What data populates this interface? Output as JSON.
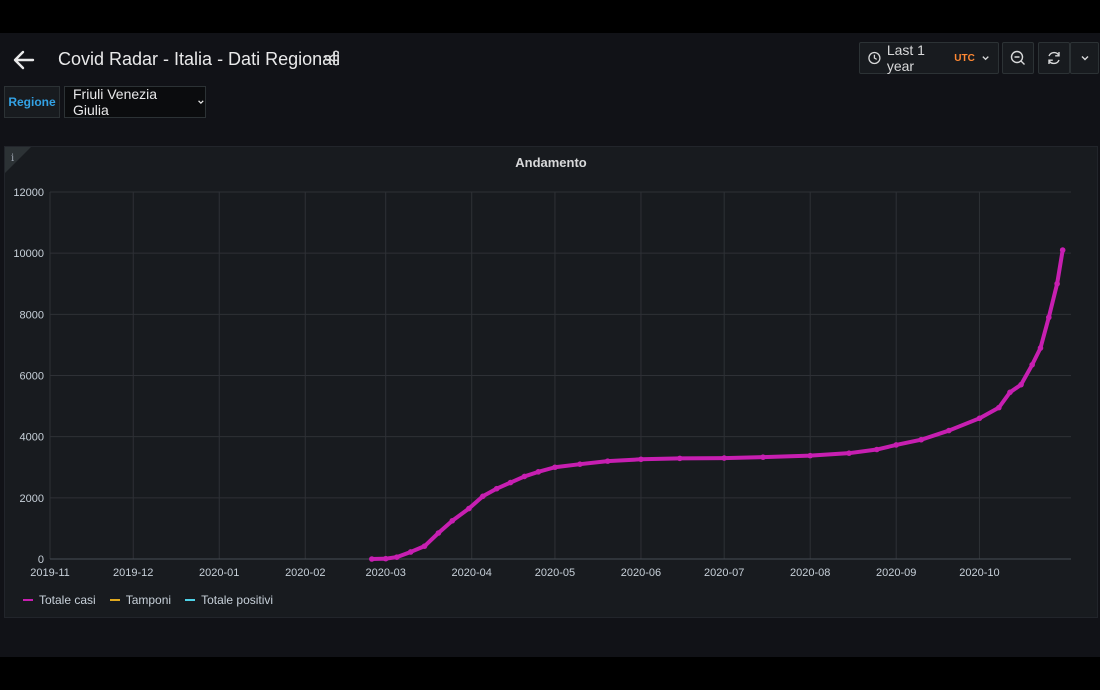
{
  "header": {
    "title": "Covid Radar - Italia - Dati Regionali",
    "time_range_label": "Last 1 year",
    "timezone": "UTC"
  },
  "variables": {
    "label": "Regione",
    "value": "Friuli Venezia Giulia"
  },
  "colors": {
    "accent": "#33a2e5",
    "utc": "#ff8833",
    "series_totale_casi": "#c71fb1",
    "series_tamponi": "#e0a91f",
    "series_totale_positivi": "#4fd2e8"
  },
  "panel": {
    "title": "Andamento"
  },
  "chart_data": {
    "type": "line",
    "title": "Andamento",
    "xlabel": "",
    "ylabel": "",
    "ylim": [
      0,
      12000
    ],
    "y_ticks": [
      "0",
      "2000",
      "4000",
      "6000",
      "8000",
      "10000",
      "12000"
    ],
    "x_ticks": [
      "2019-11",
      "2019-12",
      "2020-01",
      "2020-02",
      "2020-03",
      "2020-04",
      "2020-05",
      "2020-06",
      "2020-07",
      "2020-08",
      "2020-09",
      "2020-10"
    ],
    "grid": true,
    "legend_position": "bottom-left",
    "series": [
      {
        "name": "Totale casi",
        "x": [
          "2020-02-25",
          "2020-03-01",
          "2020-03-05",
          "2020-03-10",
          "2020-03-15",
          "2020-03-20",
          "2020-03-25",
          "2020-03-31",
          "2020-04-05",
          "2020-04-10",
          "2020-04-15",
          "2020-04-20",
          "2020-04-25",
          "2020-05-01",
          "2020-05-10",
          "2020-05-20",
          "2020-06-01",
          "2020-06-15",
          "2020-07-01",
          "2020-07-15",
          "2020-08-01",
          "2020-08-15",
          "2020-08-25",
          "2020-09-01",
          "2020-09-10",
          "2020-09-20",
          "2020-10-01",
          "2020-10-08",
          "2020-10-12",
          "2020-10-16",
          "2020-10-20",
          "2020-10-23",
          "2020-10-26",
          "2020-10-29",
          "2020-10-31"
        ],
        "values": [
          0,
          10,
          60,
          230,
          420,
          850,
          1250,
          1650,
          2050,
          2300,
          2500,
          2700,
          2850,
          3000,
          3100,
          3200,
          3260,
          3290,
          3300,
          3330,
          3380,
          3460,
          3580,
          3730,
          3900,
          4200,
          4600,
          4950,
          5450,
          5700,
          6350,
          6900,
          7900,
          9000,
          10100
        ]
      },
      {
        "name": "Tamponi",
        "x": [],
        "values": []
      },
      {
        "name": "Totale positivi",
        "x": [],
        "values": []
      }
    ]
  }
}
